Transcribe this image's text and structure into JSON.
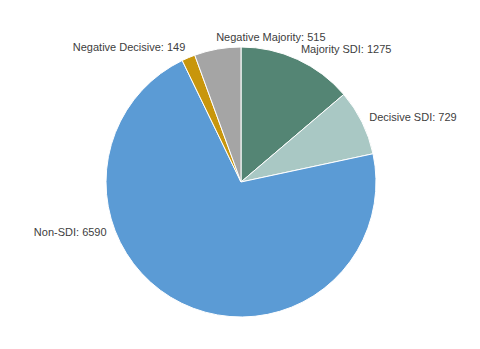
{
  "chart_data": {
    "type": "pie",
    "categories": [
      "Majority SDI",
      "Decisive SDI",
      "Non-SDI",
      "Negative Decisive",
      "Negative Majority"
    ],
    "values": [
      1275,
      729,
      6590,
      149,
      515
    ],
    "value_labels": [
      "Majority SDI: 1275",
      "Decisive SDI: 729",
      "Non-SDI: 6590",
      "Negative Decisive: 149",
      "Negative Majority: 515"
    ],
    "colors": [
      "#548574",
      "#a9c8c4",
      "#5b9bd5",
      "#c8960c",
      "#a5a5a5"
    ],
    "data_labels": true
  }
}
